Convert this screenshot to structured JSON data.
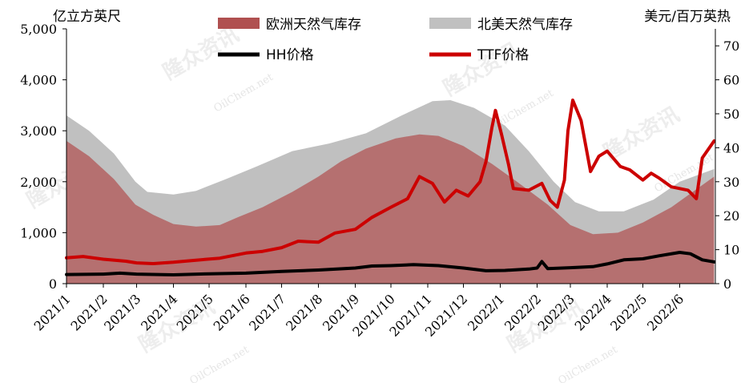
{
  "chart_data": {
    "type": "area",
    "y_left_label": "亿立方英尺",
    "y_right_label": "美元/百万英热",
    "ylim_left": [
      0,
      5000
    ],
    "ylim_right": [
      0,
      75
    ],
    "yticks_left": [
      "0",
      "1,000",
      "2,000",
      "3,000",
      "4,000",
      "5,000"
    ],
    "yticks_right": [
      "0",
      "10",
      "20",
      "30",
      "40",
      "50",
      "60",
      "70"
    ],
    "x_start": "2021-01-01",
    "x_end": "2022-07-01",
    "xticks": [
      "2021/1",
      "2021/2",
      "2021/3",
      "2021/4",
      "2021/5",
      "2021/6",
      "2021/7",
      "2021/8",
      "2021/9",
      "2021/10",
      "2021/11",
      "2021/12",
      "2022/1",
      "2022/2",
      "2022/3",
      "2022/4",
      "2022/5",
      "2022/6"
    ],
    "legend": [
      {
        "label": "欧洲天然气库存",
        "color": "#b05050",
        "kind": "area"
      },
      {
        "label": "北美天然气库存",
        "color": "#c0c0c0",
        "kind": "area"
      },
      {
        "label": "HH价格",
        "color": "#000000",
        "kind": "line"
      },
      {
        "label": "TTF价格",
        "color": "#cc0000",
        "kind": "line"
      }
    ],
    "series": [
      {
        "name": "北美天然气库存",
        "axis": "left",
        "type": "area",
        "color": "#c0c0c0",
        "points": [
          [
            "2021-01-01",
            3300
          ],
          [
            "2021-01-20",
            3000
          ],
          [
            "2021-02-10",
            2550
          ],
          [
            "2021-02-28",
            2000
          ],
          [
            "2021-03-10",
            1800
          ],
          [
            "2021-04-01",
            1750
          ],
          [
            "2021-04-20",
            1820
          ],
          [
            "2021-05-15",
            2050
          ],
          [
            "2021-06-10",
            2300
          ],
          [
            "2021-07-10",
            2600
          ],
          [
            "2021-08-10",
            2750
          ],
          [
            "2021-09-10",
            2950
          ],
          [
            "2021-10-10",
            3300
          ],
          [
            "2021-11-05",
            3580
          ],
          [
            "2021-11-20",
            3600
          ],
          [
            "2021-12-10",
            3450
          ],
          [
            "2022-01-05",
            3100
          ],
          [
            "2022-01-25",
            2600
          ],
          [
            "2022-02-15",
            2000
          ],
          [
            "2022-03-05",
            1600
          ],
          [
            "2022-03-25",
            1420
          ],
          [
            "2022-04-15",
            1420
          ],
          [
            "2022-05-10",
            1650
          ],
          [
            "2022-06-01",
            2000
          ],
          [
            "2022-06-30",
            2250
          ]
        ]
      },
      {
        "name": "欧洲天然气库存",
        "axis": "left",
        "type": "area",
        "color": "#b05050",
        "points": [
          [
            "2021-01-01",
            2800
          ],
          [
            "2021-01-20",
            2500
          ],
          [
            "2021-02-10",
            2050
          ],
          [
            "2021-02-28",
            1550
          ],
          [
            "2021-03-15",
            1350
          ],
          [
            "2021-04-01",
            1170
          ],
          [
            "2021-04-20",
            1120
          ],
          [
            "2021-05-10",
            1150
          ],
          [
            "2021-05-25",
            1300
          ],
          [
            "2021-06-15",
            1500
          ],
          [
            "2021-07-10",
            1800
          ],
          [
            "2021-08-01",
            2100
          ],
          [
            "2021-08-20",
            2400
          ],
          [
            "2021-09-10",
            2650
          ],
          [
            "2021-10-05",
            2850
          ],
          [
            "2021-10-25",
            2930
          ],
          [
            "2021-11-10",
            2900
          ],
          [
            "2021-12-01",
            2700
          ],
          [
            "2021-12-25",
            2350
          ],
          [
            "2022-01-15",
            2000
          ],
          [
            "2022-02-10",
            1550
          ],
          [
            "2022-03-01",
            1150
          ],
          [
            "2022-03-20",
            970
          ],
          [
            "2022-04-10",
            1000
          ],
          [
            "2022-05-01",
            1200
          ],
          [
            "2022-05-25",
            1500
          ],
          [
            "2022-06-15",
            1850
          ],
          [
            "2022-06-30",
            2100
          ]
        ]
      },
      {
        "name": "HH价格",
        "axis": "right",
        "type": "line",
        "color": "#000000",
        "points": [
          [
            "2021-01-01",
            2.7
          ],
          [
            "2021-02-01",
            2.8
          ],
          [
            "2021-02-15",
            3.1
          ],
          [
            "2021-03-01",
            2.8
          ],
          [
            "2021-04-01",
            2.6
          ],
          [
            "2021-05-01",
            2.9
          ],
          [
            "2021-06-01",
            3.1
          ],
          [
            "2021-07-01",
            3.6
          ],
          [
            "2021-08-01",
            4.0
          ],
          [
            "2021-09-01",
            4.6
          ],
          [
            "2021-09-15",
            5.2
          ],
          [
            "2021-10-01",
            5.3
          ],
          [
            "2021-10-20",
            5.6
          ],
          [
            "2021-11-10",
            5.3
          ],
          [
            "2021-12-01",
            4.6
          ],
          [
            "2021-12-20",
            3.8
          ],
          [
            "2022-01-05",
            3.9
          ],
          [
            "2022-01-25",
            4.3
          ],
          [
            "2022-02-01",
            4.6
          ],
          [
            "2022-02-05",
            6.5
          ],
          [
            "2022-02-10",
            4.4
          ],
          [
            "2022-03-01",
            4.7
          ],
          [
            "2022-03-20",
            5.0
          ],
          [
            "2022-04-01",
            5.8
          ],
          [
            "2022-04-15",
            7.0
          ],
          [
            "2022-05-01",
            7.3
          ],
          [
            "2022-05-15",
            8.2
          ],
          [
            "2022-06-01",
            9.2
          ],
          [
            "2022-06-10",
            8.8
          ],
          [
            "2022-06-20",
            7.0
          ],
          [
            "2022-06-30",
            6.4
          ]
        ]
      },
      {
        "name": "TTF价格",
        "axis": "right",
        "type": "line",
        "color": "#cc0000",
        "points": [
          [
            "2021-01-01",
            7.6
          ],
          [
            "2021-01-15",
            8.0
          ],
          [
            "2021-02-01",
            7.2
          ],
          [
            "2021-02-20",
            6.6
          ],
          [
            "2021-03-01",
            6.1
          ],
          [
            "2021-03-15",
            5.9
          ],
          [
            "2021-04-01",
            6.3
          ],
          [
            "2021-04-20",
            6.9
          ],
          [
            "2021-05-10",
            7.5
          ],
          [
            "2021-06-01",
            9.0
          ],
          [
            "2021-06-15",
            9.5
          ],
          [
            "2021-07-01",
            10.6
          ],
          [
            "2021-07-15",
            12.5
          ],
          [
            "2021-08-01",
            12.2
          ],
          [
            "2021-08-15",
            14.9
          ],
          [
            "2021-09-01",
            16.0
          ],
          [
            "2021-09-15",
            19.5
          ],
          [
            "2021-10-01",
            22.5
          ],
          [
            "2021-10-15",
            25.0
          ],
          [
            "2021-10-25",
            31.5
          ],
          [
            "2021-11-05",
            29.5
          ],
          [
            "2021-11-15",
            24.0
          ],
          [
            "2021-11-25",
            27.5
          ],
          [
            "2021-12-05",
            25.8
          ],
          [
            "2021-12-15",
            30.0
          ],
          [
            "2021-12-20",
            36.0
          ],
          [
            "2021-12-25",
            46.0
          ],
          [
            "2021-12-28",
            51.0
          ],
          [
            "2022-01-02",
            44.0
          ],
          [
            "2022-01-08",
            35.0
          ],
          [
            "2022-01-12",
            28.0
          ],
          [
            "2022-01-25",
            27.5
          ],
          [
            "2022-02-05",
            29.5
          ],
          [
            "2022-02-12",
            24.5
          ],
          [
            "2022-02-18",
            22.5
          ],
          [
            "2022-02-24",
            30.5
          ],
          [
            "2022-02-27",
            45.0
          ],
          [
            "2022-03-03",
            54.0
          ],
          [
            "2022-03-10",
            48.0
          ],
          [
            "2022-03-18",
            33.0
          ],
          [
            "2022-03-25",
            37.5
          ],
          [
            "2022-04-01",
            39.0
          ],
          [
            "2022-04-12",
            34.5
          ],
          [
            "2022-04-20",
            33.5
          ],
          [
            "2022-05-01",
            30.5
          ],
          [
            "2022-05-08",
            32.5
          ],
          [
            "2022-05-15",
            31.0
          ],
          [
            "2022-05-25",
            28.5
          ],
          [
            "2022-06-08",
            27.5
          ],
          [
            "2022-06-15",
            25.0
          ],
          [
            "2022-06-20",
            37.0
          ],
          [
            "2022-06-30",
            42.0
          ]
        ]
      }
    ],
    "watermarks": [
      "隆众资讯",
      "OilChem.net"
    ]
  }
}
